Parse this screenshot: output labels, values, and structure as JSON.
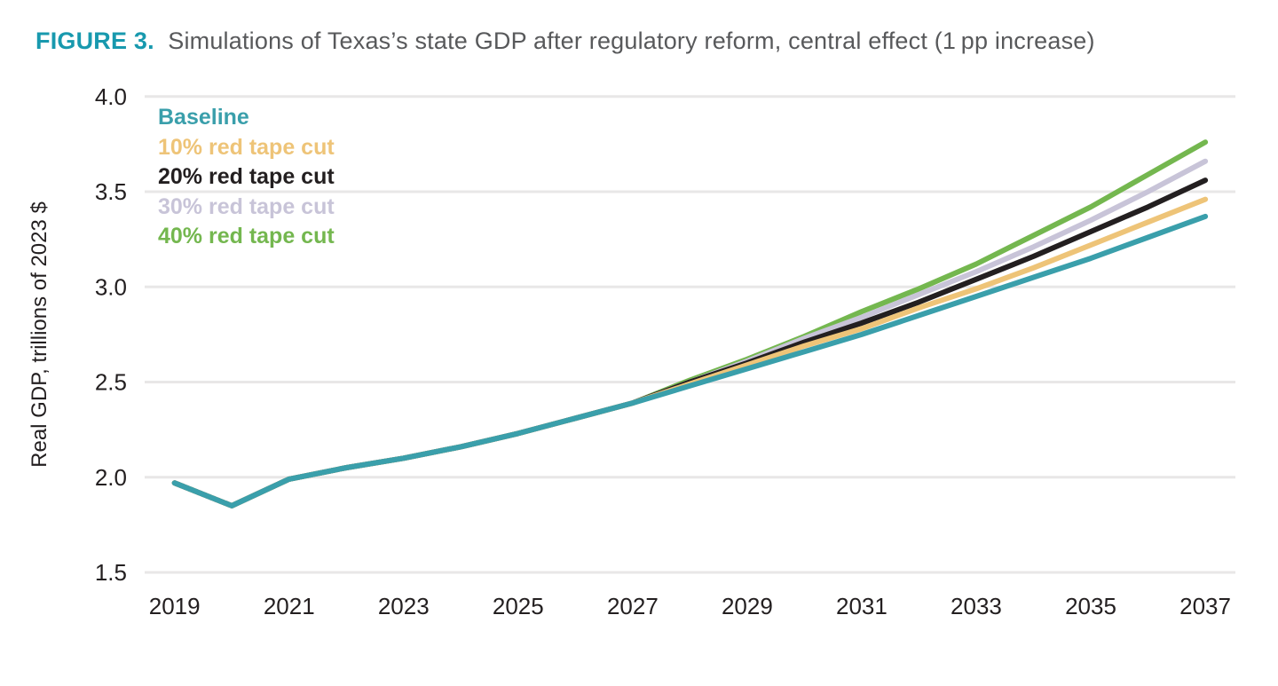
{
  "title": {
    "prefix": "FIGURE 3.",
    "text": "Simulations of Texas’s state GDP after regulatory reform, central effect (1 pp increase)"
  },
  "colors": {
    "title_accent": "#1899AE",
    "title_text": "#58595B",
    "gridline": "#E8E7E7",
    "axis_text": "#231F20",
    "background": "#FFFFFF"
  },
  "chart_data": {
    "type": "line",
    "title": "Simulations of Texas's state GDP after regulatory reform, central effect (1 pp increase)",
    "xlabel": "",
    "ylabel": "Real GDP, trillions of 2023 $",
    "x": [
      2019,
      2020,
      2021,
      2022,
      2023,
      2024,
      2025,
      2026,
      2027,
      2028,
      2029,
      2030,
      2031,
      2032,
      2033,
      2034,
      2035,
      2036,
      2037
    ],
    "x_ticks": [
      2019,
      2021,
      2023,
      2025,
      2027,
      2029,
      2031,
      2033,
      2035,
      2037
    ],
    "y_ticks": [
      1.5,
      2.0,
      2.5,
      3.0,
      3.5,
      4.0
    ],
    "ylim": [
      1.5,
      4.0
    ],
    "xlim": [
      2019,
      2037
    ],
    "grid": "horizontal",
    "legend_position": "top-left-inside",
    "series": [
      {
        "name": "Baseline",
        "color": "#3A9FAB",
        "values": [
          1.97,
          1.85,
          1.99,
          2.05,
          2.1,
          2.16,
          2.23,
          2.31,
          2.39,
          2.48,
          2.57,
          2.66,
          2.75,
          2.85,
          2.95,
          3.05,
          3.15,
          3.26,
          3.37
        ]
      },
      {
        "name": "10% red tape cut",
        "color": "#EEC478",
        "values": [
          1.97,
          1.85,
          1.99,
          2.05,
          2.1,
          2.16,
          2.23,
          2.31,
          2.39,
          2.49,
          2.59,
          2.69,
          2.78,
          2.89,
          2.99,
          3.1,
          3.22,
          3.34,
          3.46
        ]
      },
      {
        "name": "20% red tape cut",
        "color": "#231F20",
        "values": [
          1.97,
          1.85,
          1.99,
          2.05,
          2.1,
          2.16,
          2.23,
          2.31,
          2.39,
          2.5,
          2.6,
          2.71,
          2.81,
          2.92,
          3.04,
          3.16,
          3.29,
          3.42,
          3.56
        ]
      },
      {
        "name": "30% red tape cut",
        "color": "#C8C4D8",
        "values": [
          1.97,
          1.85,
          1.99,
          2.05,
          2.1,
          2.16,
          2.23,
          2.31,
          2.39,
          2.5,
          2.61,
          2.73,
          2.84,
          2.96,
          3.08,
          3.21,
          3.35,
          3.5,
          3.66
        ]
      },
      {
        "name": "40% red tape cut",
        "color": "#74B74F",
        "values": [
          1.97,
          1.85,
          1.99,
          2.05,
          2.1,
          2.16,
          2.23,
          2.31,
          2.39,
          2.51,
          2.62,
          2.74,
          2.87,
          2.99,
          3.12,
          3.27,
          3.42,
          3.59,
          3.76
        ]
      }
    ]
  }
}
